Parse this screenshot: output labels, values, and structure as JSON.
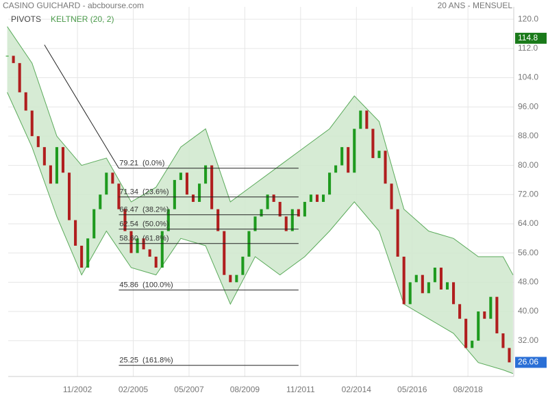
{
  "chart_data": {
    "type": "candlestick",
    "title": "CASINO GUICHARD - abcbourse.com",
    "subtitle": "20 ANS - MENSUEL",
    "indicators": [
      "PIVOTS",
      "KELTNER (20, 2)"
    ],
    "xlim": [
      2000.04,
      2020.43
    ],
    "xticks": [
      {
        "value": 2002.833,
        "label": "11/2002"
      },
      {
        "value": 2005.083,
        "label": "02/2005"
      },
      {
        "value": 2007.333,
        "label": "05/2007"
      },
      {
        "value": 2009.583,
        "label": "08/2009"
      },
      {
        "value": 2011.833,
        "label": "11/2011"
      },
      {
        "value": 2014.083,
        "label": "02/2014"
      },
      {
        "value": 2016.333,
        "label": "05/2016"
      },
      {
        "value": 2018.583,
        "label": "08/2018"
      }
    ],
    "ylim": [
      22.2,
      123.4
    ],
    "yticks": [
      {
        "value": 120,
        "label": "120.0"
      },
      {
        "value": 112,
        "label": "112.0"
      },
      {
        "value": 104,
        "label": "104.0"
      },
      {
        "value": 96,
        "label": "96.00"
      },
      {
        "value": 88,
        "label": "88.00"
      },
      {
        "value": 80,
        "label": "80.00"
      },
      {
        "value": 72,
        "label": "72.00"
      },
      {
        "value": 64,
        "label": "64.00"
      },
      {
        "value": 56,
        "label": "56.00"
      },
      {
        "value": 48,
        "label": "48.00"
      },
      {
        "value": 40,
        "label": "40.00"
      },
      {
        "value": 32,
        "label": "32.00"
      }
    ],
    "grid": true,
    "up_color": "#1e9a1e",
    "down_color": "#b01e1e",
    "x": [
      2000,
      2000.25,
      2000.5,
      2000.75,
      2001,
      2001.25,
      2001.5,
      2001.75,
      2002,
      2002.25,
      2002.5,
      2002.75,
      2003,
      2003.25,
      2003.5,
      2003.75,
      2004,
      2004.25,
      2004.5,
      2004.75,
      2005,
      2005.25,
      2005.5,
      2005.75,
      2006,
      2006.25,
      2006.5,
      2006.75,
      2007,
      2007.25,
      2007.5,
      2007.75,
      2008,
      2008.25,
      2008.5,
      2008.75,
      2009,
      2009.25,
      2009.5,
      2009.75,
      2010,
      2010.25,
      2010.5,
      2010.75,
      2011,
      2011.25,
      2011.5,
      2011.75,
      2012,
      2012.25,
      2012.5,
      2012.75,
      2013,
      2013.25,
      2013.5,
      2013.75,
      2014,
      2014.25,
      2014.5,
      2014.75,
      2015,
      2015.25,
      2015.5,
      2015.75,
      2016,
      2016.25,
      2016.5,
      2016.75,
      2017,
      2017.25,
      2017.5,
      2017.75,
      2018,
      2018.25,
      2018.5,
      2018.75,
      2019,
      2019.25,
      2019.5,
      2019.75,
      2020,
      2020.25
    ],
    "close": [
      110,
      108,
      100,
      95,
      88,
      85,
      80,
      75,
      85,
      78,
      65,
      58,
      52,
      60,
      68,
      72,
      78,
      75,
      68,
      62,
      56,
      60,
      57,
      55,
      52,
      62,
      68,
      76,
      78,
      72,
      70,
      75,
      80,
      68,
      62,
      50,
      48,
      50,
      55,
      62,
      66,
      68,
      72,
      70,
      66,
      62,
      68,
      66,
      70,
      72,
      70,
      72,
      78,
      80,
      85,
      78,
      90,
      95,
      90,
      82,
      84,
      75,
      68,
      55,
      42,
      48,
      50,
      45,
      48,
      52,
      46,
      48,
      42,
      38,
      30,
      32,
      40,
      38,
      44,
      34,
      30,
      26.06
    ],
    "keltner": {
      "name": "KELTNER (20, 2)",
      "color": "#5aaa5a",
      "fill": "#cfe8cc",
      "x": [
        2000,
        2001,
        2002,
        2003,
        2004,
        2005,
        2006,
        2007,
        2008,
        2009,
        2010,
        2011,
        2012,
        2013,
        2014,
        2015,
        2016,
        2017,
        2018,
        2019,
        2020,
        2020.4
      ],
      "upper": [
        118,
        108,
        88,
        80,
        82,
        70,
        74,
        85,
        90,
        70,
        75,
        80,
        85,
        90,
        99,
        92,
        68,
        62,
        60,
        55,
        55,
        50
      ],
      "lower": [
        100,
        85,
        66,
        50,
        62,
        52,
        50,
        60,
        58,
        42,
        55,
        50,
        55,
        62,
        70,
        62,
        42,
        38,
        34,
        26,
        24,
        23
      ]
    },
    "trend": {
      "x": [
        2001.5,
        2004.5
      ],
      "y": [
        113,
        79.21
      ]
    },
    "fib_x": [
      2004.5,
      2011.75
    ],
    "fib": [
      {
        "value": 79.21,
        "label": "79.21  (0.0%)"
      },
      {
        "value": 71.34,
        "label": "71.34  (23.6%)"
      },
      {
        "value": 66.47,
        "label": "66.47  (38.2%)"
      },
      {
        "value": 62.54,
        "label": "62.54  (50.0%)"
      },
      {
        "value": 58.6,
        "label": "58.60  (61.8%)"
      },
      {
        "value": 45.86,
        "label": "45.86  (100.0%)"
      },
      {
        "value": 25.25,
        "label": "25.25  (161.8%)"
      }
    ],
    "tags": [
      {
        "value": 114.8,
        "label": "114.8",
        "color": "#1a7a1a"
      },
      {
        "value": 26.06,
        "label": "26.06",
        "color": "#2a6fd6"
      }
    ]
  }
}
